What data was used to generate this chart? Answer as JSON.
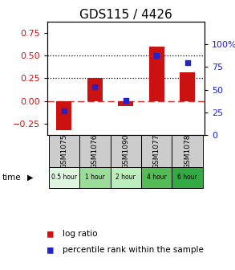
{
  "title": "GDS115 / 4426",
  "samples": [
    "GSM1075",
    "GSM1076",
    "GSM1090",
    "GSM1077",
    "GSM1078"
  ],
  "time_labels": [
    "0.5 hour",
    "1 hour",
    "2 hour",
    "4 hour",
    "6 hour"
  ],
  "time_colors": [
    "#dff5df",
    "#99dd99",
    "#bbeebb",
    "#55bb55",
    "#33aa44"
  ],
  "log_ratio": [
    -0.32,
    0.25,
    -0.06,
    0.6,
    0.32
  ],
  "percentile": [
    27,
    53,
    38,
    88,
    80
  ],
  "bar_color": "#cc1111",
  "dot_color": "#2222cc",
  "ylim_left": [
    -0.375,
    0.875
  ],
  "ylim_right": [
    0,
    125
  ],
  "yticks_left": [
    -0.25,
    0,
    0.25,
    0.5,
    0.75
  ],
  "yticks_right": [
    0,
    25,
    50,
    75,
    100
  ],
  "hline_dotted": [
    0.25,
    0.5
  ],
  "hline_dashed": 0.0,
  "bg_plot": "#ffffff",
  "bg_sample_row": "#cccccc",
  "title_fontsize": 11,
  "tick_fontsize": 8,
  "bar_width": 0.5
}
